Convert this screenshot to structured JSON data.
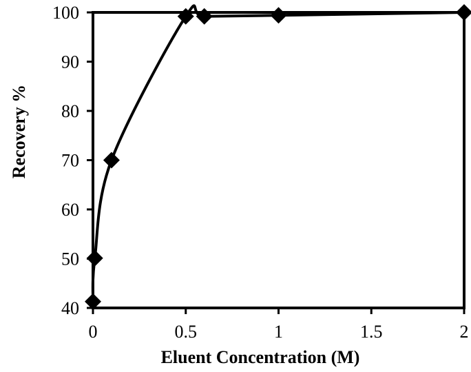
{
  "chart_data": {
    "type": "scatter",
    "title": "",
    "xlabel": "Eluent Concentration (M)",
    "ylabel": "Recovery %",
    "xlim": [
      0,
      2
    ],
    "ylim": [
      40,
      100
    ],
    "x_ticks": [
      "0",
      "0.5",
      "1",
      "1.5",
      "2"
    ],
    "y_ticks": [
      "40",
      "50",
      "60",
      "70",
      "80",
      "90",
      "100"
    ],
    "grid": false,
    "legend": "none",
    "line_style": "smoothed",
    "marker": "diamond",
    "colors": {
      "series": "#000000",
      "axes": "#000000",
      "background": "#ffffff"
    },
    "series": [
      {
        "x": [
          0.0,
          0.01,
          0.1,
          0.5,
          0.6,
          1.0,
          2.0
        ],
        "y": [
          41.3,
          50.1,
          70.0,
          99.2,
          99.2,
          99.4,
          100.0
        ]
      }
    ]
  }
}
